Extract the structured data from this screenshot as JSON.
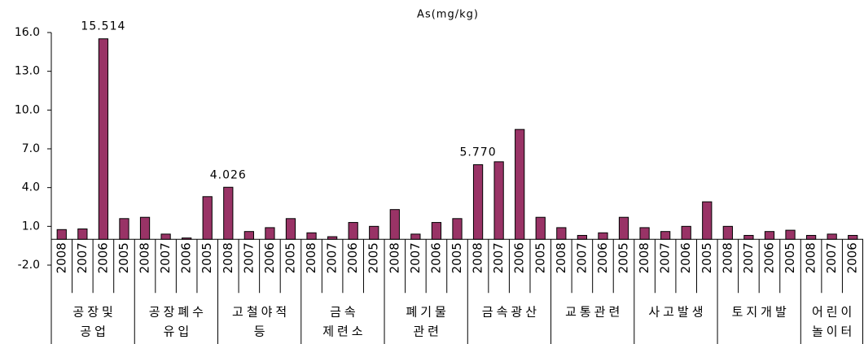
{
  "chart_data": {
    "type": "bar",
    "title": "As(mg/kg)",
    "color": "#993366",
    "ylim": [
      -2,
      16
    ],
    "yticks": [
      {
        "value": -2,
        "label": "-2.0"
      },
      {
        "value": 1,
        "label": "1.0"
      },
      {
        "value": 4,
        "label": "4.0"
      },
      {
        "value": 7,
        "label": "7.0"
      },
      {
        "value": 10,
        "label": "10.0"
      },
      {
        "value": 13,
        "label": "13.0"
      },
      {
        "value": 16,
        "label": "16.0"
      }
    ],
    "groups": [
      {
        "name": [
          "공장및",
          "공업"
        ],
        "categories": [
          "2008",
          "2007",
          "2006",
          "2005"
        ],
        "values": [
          0.75,
          0.8,
          15.514,
          1.6
        ],
        "value_labels": [
          null,
          null,
          "15.514",
          null
        ]
      },
      {
        "name": [
          "공장폐수",
          "유입"
        ],
        "categories": [
          "2008",
          "2007",
          "2006",
          "2005"
        ],
        "values": [
          1.7,
          0.4,
          0.1,
          3.3
        ]
      },
      {
        "name": [
          "고철야적",
          "등"
        ],
        "categories": [
          "2008",
          "2007",
          "2006",
          "2005"
        ],
        "values": [
          4.026,
          0.6,
          0.9,
          1.6
        ],
        "value_labels": [
          "4.026",
          null,
          null,
          null
        ]
      },
      {
        "name": [
          "금속",
          "제련소"
        ],
        "categories": [
          "2008",
          "2007",
          "2006",
          "2005"
        ],
        "values": [
          0.5,
          0.2,
          1.3,
          1.0
        ]
      },
      {
        "name": [
          "폐기물",
          "관련"
        ],
        "categories": [
          "2008",
          "2007",
          "2006",
          "2005"
        ],
        "values": [
          2.3,
          0.4,
          1.3,
          1.6
        ]
      },
      {
        "name": [
          "금속광산"
        ],
        "categories": [
          "2008",
          "2007",
          "2006",
          "2005"
        ],
        "values": [
          5.77,
          6.0,
          8.5,
          1.7
        ],
        "value_labels": [
          "5.770",
          null,
          null,
          null
        ]
      },
      {
        "name": [
          "교통관련"
        ],
        "categories": [
          "2008",
          "2007",
          "2006",
          "2005"
        ],
        "values": [
          0.9,
          0.3,
          0.5,
          1.7
        ]
      },
      {
        "name": [
          "사고발생"
        ],
        "categories": [
          "2008",
          "2007",
          "2006",
          "2005"
        ],
        "values": [
          0.9,
          0.6,
          1.0,
          2.9
        ]
      },
      {
        "name": [
          "토지개발"
        ],
        "categories": [
          "2008",
          "2007",
          "2006",
          "2005"
        ],
        "values": [
          1.0,
          0.3,
          0.6,
          0.7
        ]
      },
      {
        "name": [
          "어린이",
          "놀이터"
        ],
        "categories": [
          "2008",
          "2007",
          "2006"
        ],
        "values": [
          0.3,
          0.4,
          0.3
        ]
      }
    ]
  }
}
